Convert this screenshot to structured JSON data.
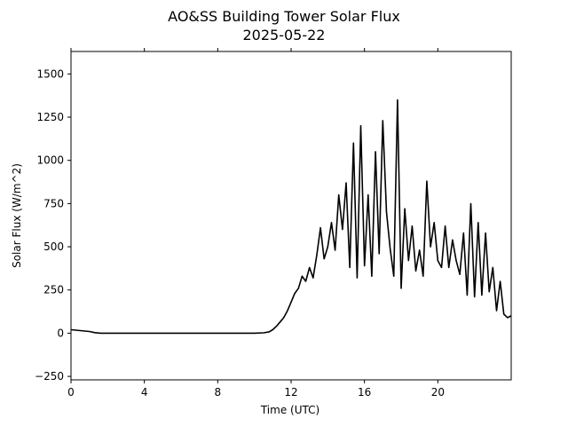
{
  "chart_data": {
    "type": "line",
    "title": "AO&SS Building Tower Solar Flux",
    "subtitle": "2025-05-22",
    "xlabel": "Time (UTC)",
    "ylabel": "Solar Flux (W/m^2)",
    "xlim": [
      0,
      24
    ],
    "ylim": [
      -270,
      1630
    ],
    "xticks": [
      0,
      4,
      8,
      12,
      16,
      20
    ],
    "yticks": [
      -250,
      0,
      250,
      500,
      750,
      1000,
      1250,
      1500
    ],
    "grid": false,
    "legend": "none",
    "line_color": "#000000",
    "series": [
      {
        "x": [
          0,
          0.5,
          1,
          1.3,
          1.6,
          2,
          4,
          6,
          8,
          10,
          10.5,
          10.8,
          11,
          11.2,
          11.4,
          11.6,
          11.8,
          12,
          12.2,
          12.4,
          12.6,
          12.8,
          13,
          13.2,
          13.4,
          13.6,
          13.8,
          14,
          14.2,
          14.4,
          14.6,
          14.8,
          15,
          15.2,
          15.4,
          15.6,
          15.8,
          16,
          16.2,
          16.4,
          16.6,
          16.8,
          17,
          17.2,
          17.4,
          17.6,
          17.8,
          18,
          18.2,
          18.4,
          18.6,
          18.8,
          19,
          19.2,
          19.4,
          19.6,
          19.8,
          20,
          20.2,
          20.4,
          20.6,
          20.8,
          21,
          21.2,
          21.4,
          21.6,
          21.8,
          22,
          22.2,
          22.4,
          22.6,
          22.8,
          23,
          23.2,
          23.4,
          23.6,
          23.8,
          24
        ],
        "y": [
          20,
          15,
          10,
          3,
          0,
          0,
          0,
          0,
          0,
          0,
          2,
          8,
          20,
          40,
          65,
          90,
          130,
          180,
          230,
          260,
          330,
          300,
          380,
          320,
          450,
          610,
          430,
          500,
          640,
          480,
          800,
          600,
          870,
          380,
          1100,
          320,
          1200,
          390,
          800,
          330,
          1050,
          460,
          1230,
          700,
          490,
          330,
          1350,
          260,
          720,
          420,
          620,
          360,
          480,
          330,
          880,
          500,
          640,
          420,
          380,
          620,
          380,
          540,
          420,
          340,
          580,
          220,
          750,
          210,
          640,
          220,
          580,
          240,
          380,
          130,
          300,
          110,
          90,
          100
        ]
      }
    ]
  }
}
